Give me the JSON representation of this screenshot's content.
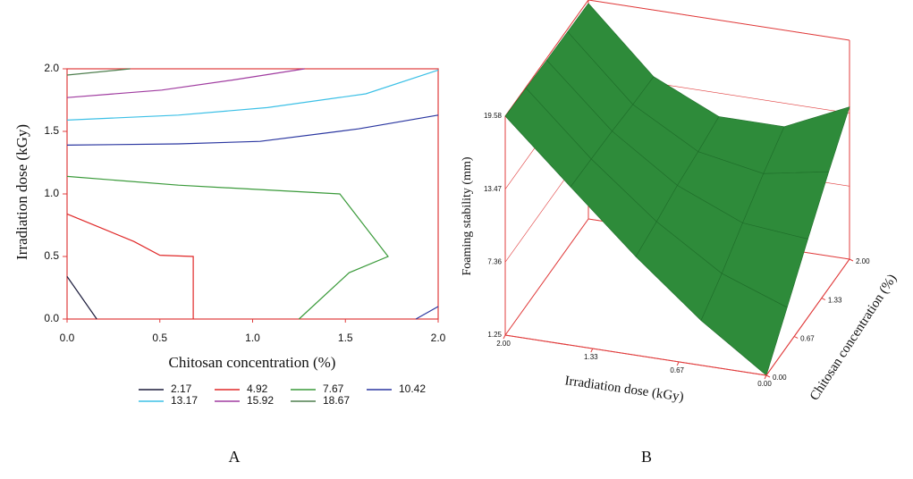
{
  "chart_data": [
    {
      "type": "contour",
      "label": "A",
      "xlabel": "Chitosan concentration (%)",
      "ylabel": "Irradiation dose (kGy)",
      "xlim": [
        0,
        2
      ],
      "ylim": [
        0,
        2
      ],
      "xticks": [
        {
          "value": 0,
          "label": "0.0"
        },
        {
          "value": 0.5,
          "label": "0.5"
        },
        {
          "value": 1,
          "label": "1.0"
        },
        {
          "value": 1.5,
          "label": "1.5"
        },
        {
          "value": 2,
          "label": "2.0"
        }
      ],
      "yticks": [
        {
          "value": 0,
          "label": "0.0"
        },
        {
          "value": 0.5,
          "label": "0.5"
        },
        {
          "value": 1,
          "label": "1.0"
        },
        {
          "value": 1.5,
          "label": "1.5"
        },
        {
          "value": 2,
          "label": "2.0"
        }
      ],
      "axis_color": "#e03c3c",
      "series": [
        {
          "name": "2.17",
          "color": "#1c1c3c",
          "x": [
            0,
            0.16
          ],
          "y": [
            0.34,
            0
          ]
        },
        {
          "name": "4.92",
          "color": "#e02828",
          "x": [
            0,
            0.36,
            0.5,
            0.68,
            0.68
          ],
          "y": [
            0.84,
            0.62,
            0.51,
            0.5,
            0
          ]
        },
        {
          "name": "7.67",
          "color": "#3a9a3a",
          "x": [
            0,
            0.6,
            1.47,
            1.73,
            1.52,
            1.25
          ],
          "y": [
            1.14,
            1.07,
            1.0,
            0.5,
            0.37,
            0
          ]
        },
        {
          "name": "10.42",
          "color": "#2a36a0",
          "x": [
            0,
            0.6,
            1.04,
            1.57,
            2,
            null,
            1.88,
            2
          ],
          "y": [
            1.39,
            1.4,
            1.42,
            1.52,
            1.63,
            null,
            0,
            0.1
          ]
        },
        {
          "name": "13.17",
          "color": "#3cc0e6",
          "x": [
            0,
            0.6,
            1.08,
            1.61,
            2
          ],
          "y": [
            1.59,
            1.63,
            1.69,
            1.8,
            1.99
          ]
        },
        {
          "name": "15.92",
          "color": "#a03ca0",
          "x": [
            0,
            0.51,
            0.89,
            1.28
          ],
          "y": [
            1.77,
            1.83,
            1.91,
            2.0
          ]
        },
        {
          "name": "18.67",
          "color": "#4e7e4e",
          "x": [
            0,
            0.34
          ],
          "y": [
            1.95,
            2.0
          ]
        }
      ]
    },
    {
      "type": "surface3d",
      "label": "B",
      "zlabel": "Foaming stability (mm)",
      "xlabel": "Irradiation dose (kGy)",
      "ylabel": "Chitosan concentration (%)",
      "xlim": [
        0,
        2
      ],
      "ylim": [
        0,
        2
      ],
      "zlim": [
        1.25,
        19.58
      ],
      "xticks": [
        {
          "value": 2,
          "label": "2.00"
        },
        {
          "value": 1.33,
          "label": "1.33"
        },
        {
          "value": 0.67,
          "label": "0.67"
        },
        {
          "value": 0,
          "label": "0.00"
        }
      ],
      "yticks": [
        {
          "value": 0,
          "label": "0.00"
        },
        {
          "value": 0.67,
          "label": "0.67"
        },
        {
          "value": 1.33,
          "label": "1.33"
        },
        {
          "value": 2,
          "label": "2.00"
        }
      ],
      "zticks": [
        1.25,
        7.36,
        13.47,
        19.58
      ],
      "axis_color": "#e03c3c",
      "color": "#2e8b3a",
      "x": [
        0,
        0.5,
        1,
        1.5,
        2
      ],
      "y": [
        0,
        0.5,
        1,
        1.5,
        2
      ],
      "z": [
        [
          1.25,
          4.5,
          7.8,
          11,
          14
        ],
        [
          5,
          6.5,
          8.3,
          10,
          11.5
        ],
        [
          9.5,
          10,
          10.6,
          11,
          11.5
        ],
        [
          14.5,
          14.4,
          14.3,
          14.1,
          14
        ],
        [
          19.58,
          19.5,
          19.4,
          19.35,
          19.3
        ]
      ]
    }
  ]
}
